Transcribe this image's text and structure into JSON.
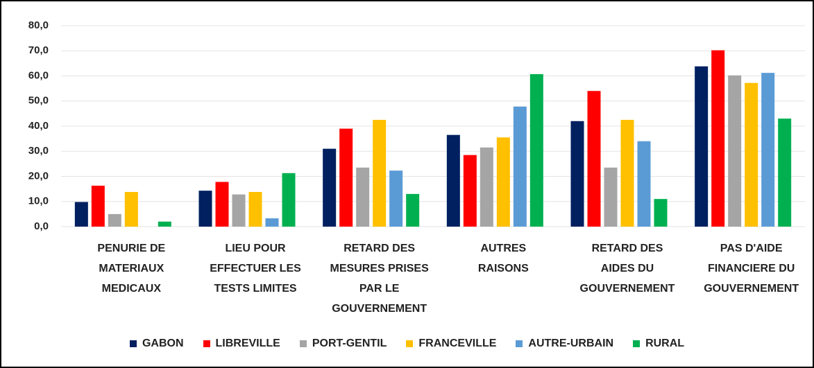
{
  "chart_data": {
    "type": "bar",
    "categories": [
      "PENURIE DE\nMATERIAUX\nMEDICAUX",
      "LIEU POUR\nEFFECTUER LES\nTESTS LIMITES",
      "RETARD DES\nMESURES PRISES\nPAR LE\nGOUVERNEMENT",
      "AUTRES\nRAISONS",
      "RETARD DES\nAIDES DU\nGOUVERNEMENT",
      "PAS D'AIDE\nFINANCIERE DU\nGOUVERNEMENT"
    ],
    "series": [
      {
        "name": "GABON",
        "color": "#002060",
        "values": [
          9.8,
          14.3,
          31,
          36.5,
          42,
          63.8
        ]
      },
      {
        "name": "LIBREVILLE",
        "color": "#ff0000",
        "values": [
          16.3,
          17.8,
          39,
          28.5,
          54,
          70.2
        ]
      },
      {
        "name": "PORT-GENTIL",
        "color": "#a5a5a5",
        "values": [
          5,
          12.8,
          23.5,
          31.5,
          23.5,
          60.2
        ]
      },
      {
        "name": "FRANCEVILLE",
        "color": "#ffc000",
        "values": [
          13.8,
          13.8,
          42.5,
          35.5,
          42.5,
          57.2
        ]
      },
      {
        "name": "AUTRE-URBAIN",
        "color": "#5b9bd5",
        "values": [
          null,
          3.3,
          22.3,
          47.8,
          34,
          61.2
        ]
      },
      {
        "name": "RURAL",
        "color": "#00b050",
        "values": [
          2,
          21.3,
          13,
          60.7,
          11,
          43
        ]
      }
    ],
    "ylim": [
      0,
      80
    ],
    "yticks": [
      {
        "value": 0,
        "label": "0,0"
      },
      {
        "value": 10,
        "label": "10,0"
      },
      {
        "value": 20,
        "label": "20,0"
      },
      {
        "value": 30,
        "label": "30,0"
      },
      {
        "value": 40,
        "label": "40,0"
      },
      {
        "value": 50,
        "label": "50,0"
      },
      {
        "value": 60,
        "label": "60,0"
      },
      {
        "value": 70,
        "label": "70,0"
      },
      {
        "value": 80,
        "label": "80,0"
      }
    ],
    "grid": true,
    "legend": "bottom"
  }
}
